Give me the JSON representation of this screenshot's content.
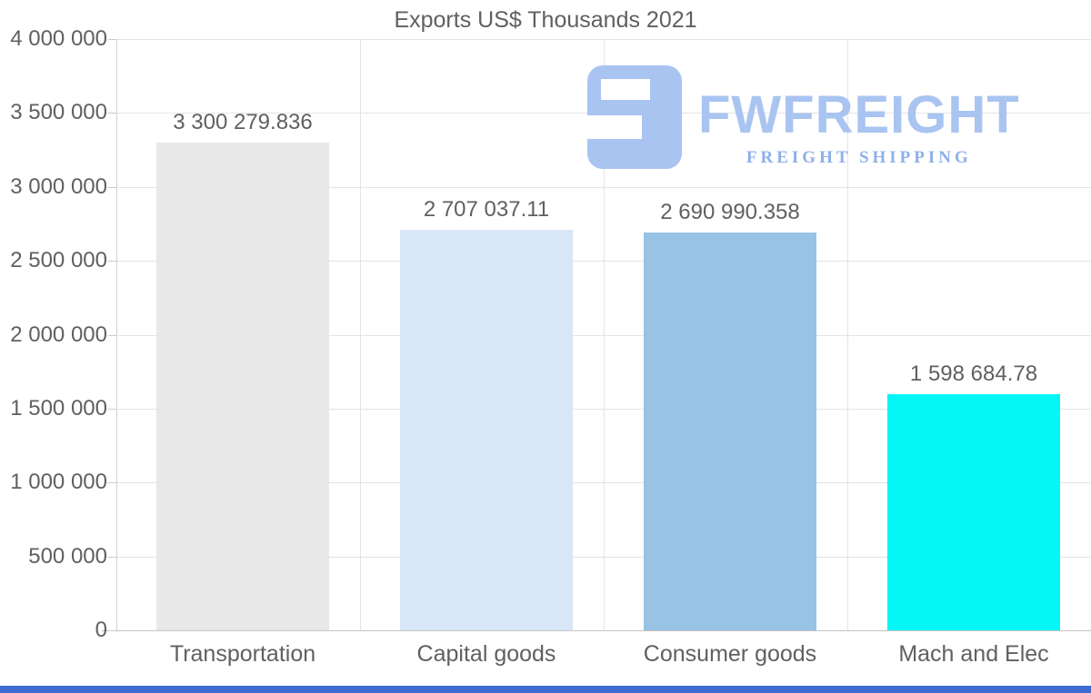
{
  "chart_data": {
    "type": "bar",
    "title": "Exports US$ Thousands 2021",
    "categories": [
      "Transportation",
      "Capital goods",
      "Consumer goods",
      "Mach and Elec"
    ],
    "values": [
      3300279.836,
      2707037.11,
      2690990.358,
      1598684.78
    ],
    "value_labels": [
      "3 300 279.836",
      "2 707 037.11",
      "2 690 990.358",
      "1 598 684.78"
    ],
    "bar_colors": [
      "#e8e8e8",
      "#d9e6f7",
      "#98c3e5",
      "#05f6f6"
    ],
    "xlabel": "",
    "ylabel": "",
    "ylim": [
      0,
      4000000
    ],
    "ytick_step": 500000,
    "ytick_labels": [
      "0",
      "500 000",
      "1 000 000",
      "1 500 000",
      "2 000 000",
      "2 500 000",
      "3 000 000",
      "3 500 000",
      "4 000 000"
    ],
    "legend": "none",
    "grid": "horizontal lines every 500000 plus vertical category separators",
    "text_color": "#606060",
    "grid_color": "#e4e4e4",
    "axis_color": "#c9c9c9"
  },
  "logo": {
    "wordmark": "FWFREIGHT",
    "tagline": "FREIGHT SHIPPING",
    "mark_color": "#a9c4f0",
    "wordmark_color": "#a9c4f0",
    "tagline_color": "#8fb0e8"
  },
  "footer": {
    "accent_bar_color": "#3f6ad1"
  }
}
